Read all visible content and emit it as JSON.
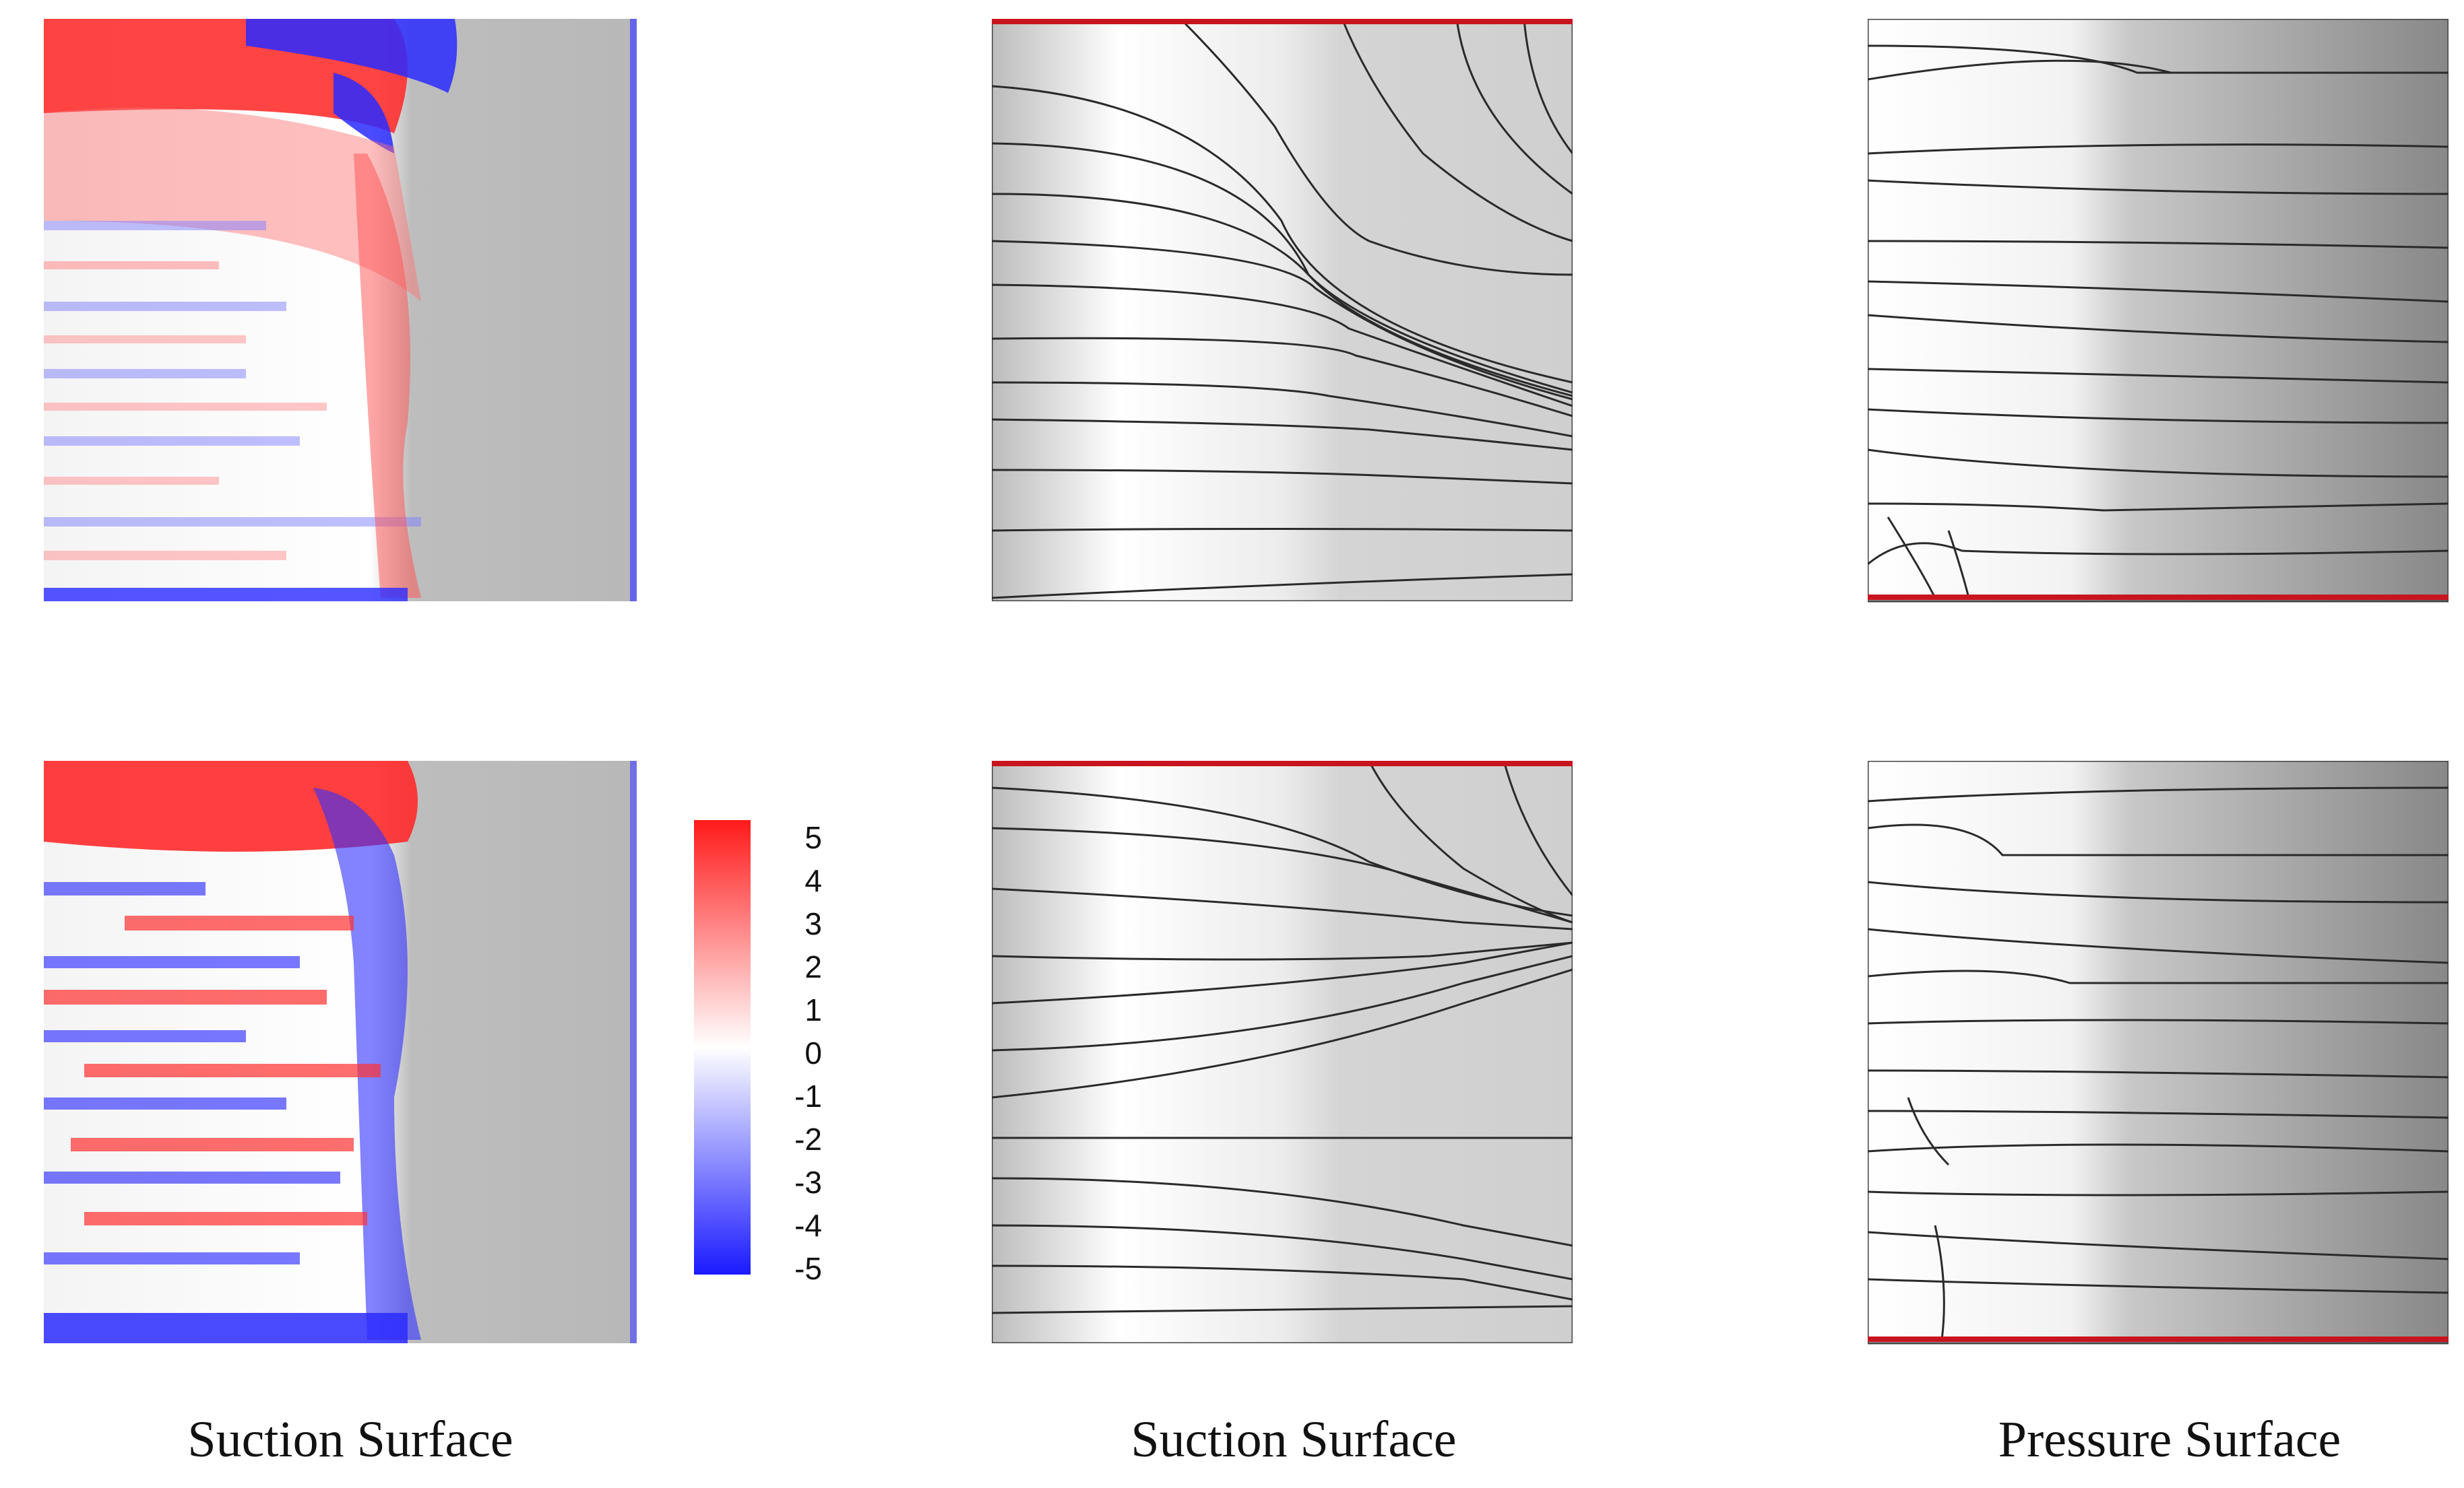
{
  "captions": {
    "left": "Suction Surface",
    "middle": "Suction Surface",
    "right": "Pressure Surface"
  },
  "colorbar": {
    "ticks": [
      "5",
      "4",
      "3",
      "2",
      "1",
      "0",
      "-1",
      "-2",
      "-3",
      "-4",
      "-5"
    ],
    "min_color": "#1a1aff",
    "max_color": "#ff1a1a"
  },
  "colors": {
    "endwall_line": "#c8141e",
    "streamline": "#2a2a2a"
  }
}
